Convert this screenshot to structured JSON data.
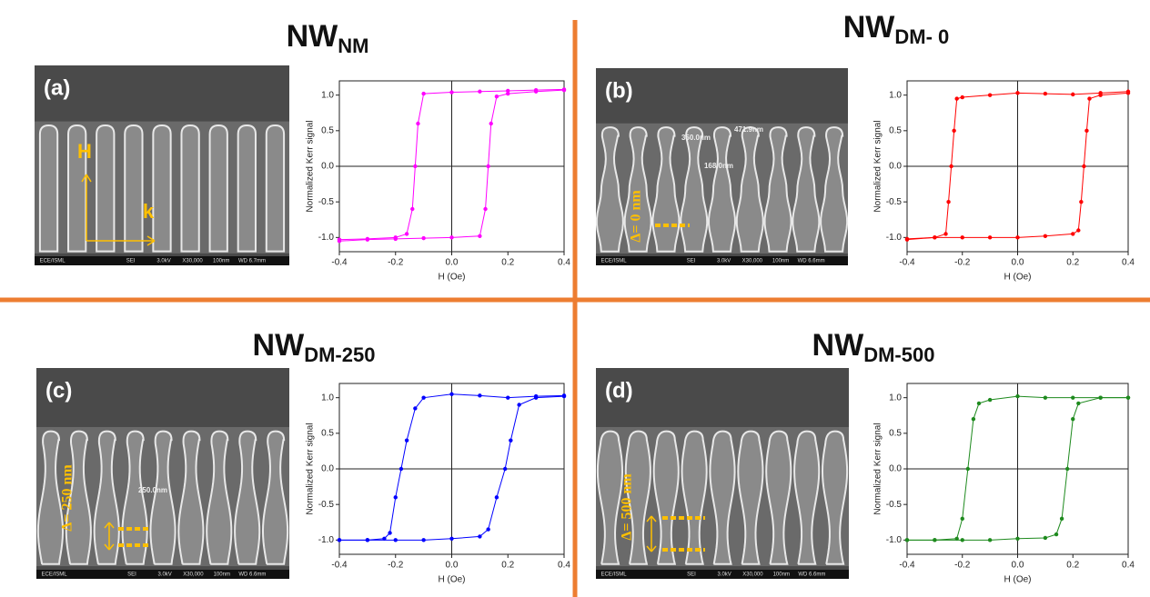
{
  "chart_data": [
    {
      "type": "line",
      "title": "NW",
      "title_subscript": "NM",
      "panel_label": "(a)",
      "annotations": [
        "H",
        "k"
      ],
      "sem_footer": [
        "ECE/ISML",
        "SEI",
        "3.0kV",
        "X30,000",
        "100nm",
        "WD 6.7mm"
      ],
      "xlabel": "H (Oe)",
      "ylabel": "Normalized Kerr signal",
      "xlim": [
        -0.4,
        0.4
      ],
      "xticks": [
        -0.4,
        -0.2,
        {
          "value": 0,
          "label": "0.0"
        },
        0.2,
        0.4
      ],
      "ylim": [
        -1.2,
        1.2
      ],
      "yticks": [
        {
          "value": -1,
          "label": "-1.0"
        },
        -0.5,
        {
          "value": 0,
          "label": "0.0"
        },
        0.5,
        {
          "value": 1,
          "label": "1.0"
        }
      ],
      "series": [
        {
          "color": "#ff00ff",
          "x": [
            -0.4,
            -0.3,
            -0.2,
            -0.16,
            -0.14,
            -0.13,
            -0.12,
            -0.1,
            0,
            0.1,
            0.2,
            0.3,
            0.4
          ],
          "values": [
            -1.03,
            -1.02,
            -1.0,
            -0.95,
            -0.6,
            0,
            0.6,
            1.02,
            1.04,
            1.05,
            1.06,
            1.07,
            1.08
          ]
        },
        {
          "color": "#ff00ff",
          "x": [
            -0.4,
            -0.3,
            -0.2,
            -0.1,
            0,
            0.1,
            0.12,
            0.13,
            0.14,
            0.16,
            0.2,
            0.3,
            0.4
          ],
          "values": [
            -1.05,
            -1.03,
            -1.02,
            -1.01,
            -1.0,
            -0.98,
            -0.6,
            0,
            0.6,
            0.98,
            1.02,
            1.05,
            1.07
          ]
        }
      ]
    },
    {
      "type": "line",
      "title": "NW",
      "title_subscript": "DM- 0",
      "panel_label": "(b)",
      "annotations": [
        "Δ= 0 nm",
        "350.0nm",
        "471.9nm",
        "168.0nm"
      ],
      "sem_footer": [
        "ECE/ISML",
        "SEI",
        "3.0kV",
        "X30,000",
        "100nm",
        "WD 6.6mm"
      ],
      "xlabel": "H (Oe)",
      "ylabel": "Normalized Kerr signal",
      "xlim": [
        -0.4,
        0.4
      ],
      "xticks": [
        -0.4,
        -0.2,
        {
          "value": 0,
          "label": "0.0"
        },
        0.2,
        0.4
      ],
      "ylim": [
        -1.2,
        1.2
      ],
      "yticks": [
        {
          "value": -1,
          "label": "-1.0"
        },
        -0.5,
        {
          "value": 0,
          "label": "0.0"
        },
        0.5,
        {
          "value": 1,
          "label": "1.0"
        }
      ],
      "series": [
        {
          "color": "#ff0000",
          "x": [
            -0.4,
            -0.3,
            -0.26,
            -0.25,
            -0.24,
            -0.23,
            -0.22,
            -0.2,
            -0.1,
            0,
            0.1,
            0.2,
            0.3,
            0.4
          ],
          "values": [
            -1.02,
            -1.0,
            -0.95,
            -0.5,
            0,
            0.5,
            0.95,
            0.97,
            1.0,
            1.03,
            1.02,
            1.01,
            1.03,
            1.05
          ]
        },
        {
          "color": "#ff0000",
          "x": [
            -0.4,
            -0.3,
            -0.2,
            -0.1,
            0,
            0.1,
            0.2,
            0.22,
            0.23,
            0.24,
            0.25,
            0.26,
            0.3,
            0.4
          ],
          "values": [
            -1.03,
            -1.0,
            -1.0,
            -1.0,
            -1.0,
            -0.98,
            -0.95,
            -0.9,
            -0.5,
            0,
            0.5,
            0.95,
            1.0,
            1.03
          ]
        }
      ]
    },
    {
      "type": "line",
      "title": "NW",
      "title_subscript": "DM-250",
      "panel_label": "(c)",
      "annotations": [
        "Δ= 250 nm",
        "250.0nm"
      ],
      "sem_footer": [
        "ECE/ISML",
        "SEI",
        "3.0kV",
        "X30,000",
        "100nm",
        "WD 6.6mm"
      ],
      "xlabel": "H (Oe)",
      "ylabel": "Normalized Kerr signal",
      "xlim": [
        -0.4,
        0.4
      ],
      "xticks": [
        -0.4,
        -0.2,
        {
          "value": 0,
          "label": "0.0"
        },
        0.2,
        0.4
      ],
      "ylim": [
        -1.2,
        1.2
      ],
      "yticks": [
        {
          "value": -1,
          "label": "-1.0"
        },
        -0.5,
        {
          "value": 0,
          "label": "0.0"
        },
        0.5,
        {
          "value": 1,
          "label": "1.0"
        }
      ],
      "series": [
        {
          "color": "#0000ff",
          "x": [
            -0.4,
            -0.3,
            -0.24,
            -0.22,
            -0.2,
            -0.18,
            -0.16,
            -0.13,
            -0.1,
            0,
            0.1,
            0.2,
            0.3,
            0.4
          ],
          "values": [
            -1.0,
            -1.0,
            -0.98,
            -0.9,
            -0.4,
            0,
            0.4,
            0.85,
            1.0,
            1.05,
            1.03,
            1.0,
            1.02,
            1.03
          ]
        },
        {
          "color": "#0000ff",
          "x": [
            -0.4,
            -0.3,
            -0.2,
            -0.1,
            0,
            0.1,
            0.13,
            0.16,
            0.19,
            0.21,
            0.24,
            0.3,
            0.4
          ],
          "values": [
            -1.0,
            -1.0,
            -1.0,
            -1.0,
            -0.98,
            -0.95,
            -0.85,
            -0.4,
            0,
            0.4,
            0.9,
            1.0,
            1.02
          ]
        }
      ]
    },
    {
      "type": "line",
      "title": "NW",
      "title_subscript": "DM-500",
      "panel_label": "(d)",
      "annotations": [
        "Δ= 500 nm"
      ],
      "sem_footer": [
        "ECE/ISML",
        "SEI",
        "3.0kV",
        "X30,000",
        "100nm",
        "WD 6.6mm"
      ],
      "xlabel": "H (Oe)",
      "ylabel": "Normalized Kerr signal",
      "xlim": [
        -0.4,
        0.4
      ],
      "xticks": [
        -0.4,
        -0.2,
        {
          "value": 0,
          "label": "0.0"
        },
        0.2,
        0.4
      ],
      "ylim": [
        -1.2,
        1.2
      ],
      "yticks": [
        {
          "value": -1,
          "label": "-1.0"
        },
        -0.5,
        {
          "value": 0,
          "label": "0.0"
        },
        0.5,
        {
          "value": 1,
          "label": "1.0"
        }
      ],
      "series": [
        {
          "color": "#1e8a1e",
          "x": [
            -0.4,
            -0.3,
            -0.22,
            -0.2,
            -0.18,
            -0.16,
            -0.14,
            -0.1,
            0,
            0.1,
            0.2,
            0.3,
            0.4
          ],
          "values": [
            -1.0,
            -1.0,
            -0.98,
            -0.7,
            0,
            0.7,
            0.92,
            0.97,
            1.02,
            1.0,
            1.0,
            1.0,
            1.0
          ]
        },
        {
          "color": "#1e8a1e",
          "x": [
            -0.4,
            -0.3,
            -0.2,
            -0.1,
            0,
            0.1,
            0.14,
            0.16,
            0.18,
            0.2,
            0.22,
            0.3,
            0.4
          ],
          "values": [
            -1.0,
            -1.0,
            -1.0,
            -1.0,
            -0.98,
            -0.97,
            -0.92,
            -0.7,
            0,
            0.7,
            0.92,
            1.0,
            1.0
          ]
        }
      ]
    }
  ]
}
